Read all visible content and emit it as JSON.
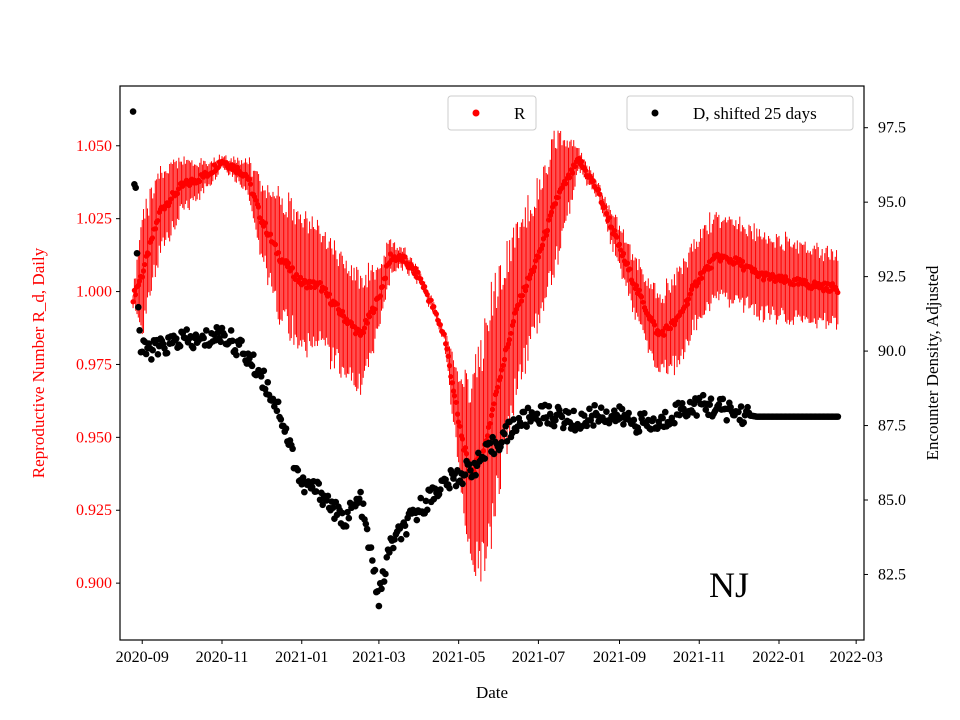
{
  "chart_data": {
    "type": "scatter",
    "xlabel": "Date",
    "y1label": "Reproductive Number R_d, Daily",
    "y2label": "Encounter Density, Adjusted",
    "annotation": "NJ",
    "xlim": [
      "2020-08-15",
      "2022-03-07"
    ],
    "y1lim": [
      0.8805,
      1.0705
    ],
    "y2lim": [
      80.3,
      98.9
    ],
    "xticks": [
      {
        "date": "2020-09-01",
        "label": "2020-09"
      },
      {
        "date": "2020-11-01",
        "label": "2020-11"
      },
      {
        "date": "2021-01-01",
        "label": "2021-01"
      },
      {
        "date": "2021-03-01",
        "label": "2021-03"
      },
      {
        "date": "2021-05-01",
        "label": "2021-05"
      },
      {
        "date": "2021-07-01",
        "label": "2021-07"
      },
      {
        "date": "2021-09-01",
        "label": "2021-09"
      },
      {
        "date": "2021-11-01",
        "label": "2021-11"
      },
      {
        "date": "2022-01-01",
        "label": "2022-01"
      },
      {
        "date": "2022-03-01",
        "label": "2022-03"
      }
    ],
    "y1ticks": [
      {
        "value": 0.9,
        "label": "0.900"
      },
      {
        "value": 0.925,
        "label": "0.925"
      },
      {
        "value": 0.95,
        "label": "0.950"
      },
      {
        "value": 0.975,
        "label": "0.975"
      },
      {
        "value": 1.0,
        "label": "1.000"
      },
      {
        "value": 1.025,
        "label": "1.025"
      },
      {
        "value": 1.05,
        "label": "1.050"
      }
    ],
    "y2ticks": [
      {
        "value": 82.5,
        "label": "82.5"
      },
      {
        "value": 85.0,
        "label": "85.0"
      },
      {
        "value": 87.5,
        "label": "87.5"
      },
      {
        "value": 90.0,
        "label": "90.0"
      },
      {
        "value": 92.5,
        "label": "92.5"
      },
      {
        "value": 95.0,
        "label": "95.0"
      },
      {
        "value": 97.5,
        "label": "97.5"
      }
    ],
    "legend": [
      {
        "name": "R",
        "color": "#ff0000",
        "placement": "top-center"
      },
      {
        "name": "D, shifted 25 days",
        "color": "#000000",
        "placement": "top-right"
      }
    ],
    "series": [
      {
        "name": "R",
        "axis": "left",
        "color": "#ff0000",
        "style": "markers with daily error bars",
        "center_knots": [
          [
            "2020-08-25",
            0.998
          ],
          [
            "2020-09-01",
            1.006
          ],
          [
            "2020-09-15",
            1.028
          ],
          [
            "2020-10-01",
            1.036
          ],
          [
            "2020-10-20",
            1.04
          ],
          [
            "2020-11-01",
            1.045
          ],
          [
            "2020-11-20",
            1.04
          ],
          [
            "2020-12-01",
            1.025
          ],
          [
            "2020-12-15",
            1.012
          ],
          [
            "2021-01-01",
            1.003
          ],
          [
            "2021-01-15",
            1.002
          ],
          [
            "2021-02-01",
            0.992
          ],
          [
            "2021-02-15",
            0.985
          ],
          [
            "2021-03-01",
            0.998
          ],
          [
            "2021-03-10",
            1.012
          ],
          [
            "2021-03-20",
            1.011
          ],
          [
            "2021-04-01",
            1.005
          ],
          [
            "2021-04-10",
            0.996
          ],
          [
            "2021-04-20",
            0.985
          ],
          [
            "2021-04-25",
            0.972
          ],
          [
            "2021-05-01",
            0.955
          ],
          [
            "2021-05-10",
            0.937
          ],
          [
            "2021-05-20",
            0.945
          ],
          [
            "2021-06-01",
            0.97
          ],
          [
            "2021-06-15",
            0.995
          ],
          [
            "2021-07-01",
            1.012
          ],
          [
            "2021-07-15",
            1.032
          ],
          [
            "2021-08-01",
            1.045
          ],
          [
            "2021-08-15",
            1.035
          ],
          [
            "2021-09-01",
            1.015
          ],
          [
            "2021-09-15",
            1.0
          ],
          [
            "2021-10-01",
            0.985
          ],
          [
            "2021-10-15",
            0.99
          ],
          [
            "2021-11-01",
            1.005
          ],
          [
            "2021-11-15",
            1.012
          ],
          [
            "2021-12-01",
            1.01
          ],
          [
            "2021-12-15",
            1.006
          ],
          [
            "2022-01-01",
            1.004
          ],
          [
            "2022-01-15",
            1.003
          ],
          [
            "2022-02-15",
            1.001
          ]
        ],
        "spread_knots": [
          [
            "2020-08-25",
            0.003
          ],
          [
            "2020-09-01",
            0.022
          ],
          [
            "2020-10-01",
            0.01
          ],
          [
            "2020-11-01",
            0.002
          ],
          [
            "2020-11-20",
            0.006
          ],
          [
            "2020-12-15",
            0.025
          ],
          [
            "2021-02-15",
            0.022
          ],
          [
            "2021-03-15",
            0.004
          ],
          [
            "2021-04-01",
            0.002
          ],
          [
            "2021-04-20",
            0.002
          ],
          [
            "2021-05-10",
            0.035
          ],
          [
            "2021-05-25",
            0.048
          ],
          [
            "2021-06-15",
            0.03
          ],
          [
            "2021-07-15",
            0.025
          ],
          [
            "2021-08-01",
            0.004
          ],
          [
            "2021-08-15",
            0.003
          ],
          [
            "2021-09-15",
            0.012
          ],
          [
            "2021-10-15",
            0.018
          ],
          [
            "2021-12-01",
            0.016
          ],
          [
            "2022-02-15",
            0.015
          ]
        ]
      },
      {
        "name": "D, shifted 25 days",
        "axis": "right",
        "color": "#000000",
        "style": "markers",
        "knots": [
          [
            "2020-08-25",
            98.2
          ],
          [
            "2020-08-26",
            95.8
          ],
          [
            "2020-08-27",
            95.3
          ],
          [
            "2020-08-28",
            93.5
          ],
          [
            "2020-08-29",
            91.5
          ],
          [
            "2020-08-31",
            90.0
          ],
          [
            "2020-09-15",
            90.1
          ],
          [
            "2020-10-01",
            90.4
          ],
          [
            "2020-10-15",
            90.3
          ],
          [
            "2020-11-01",
            90.6
          ],
          [
            "2020-11-15",
            90.1
          ],
          [
            "2020-12-01",
            89.2
          ],
          [
            "2020-12-15",
            88.0
          ],
          [
            "2021-01-01",
            85.5
          ],
          [
            "2021-01-15",
            85.3
          ],
          [
            "2021-02-01",
            84.3
          ],
          [
            "2021-02-15",
            85.0
          ],
          [
            "2021-03-01",
            81.7
          ],
          [
            "2021-03-10",
            83.5
          ],
          [
            "2021-03-20",
            84.0
          ],
          [
            "2021-04-01",
            84.7
          ],
          [
            "2021-04-15",
            85.4
          ],
          [
            "2021-05-01",
            85.8
          ],
          [
            "2021-05-15",
            86.2
          ],
          [
            "2021-06-01",
            87.0
          ],
          [
            "2021-06-15",
            87.6
          ],
          [
            "2021-07-01",
            87.9
          ],
          [
            "2021-07-15",
            87.8
          ],
          [
            "2021-08-01",
            87.6
          ],
          [
            "2021-08-15",
            87.9
          ],
          [
            "2021-09-01",
            87.8
          ],
          [
            "2021-09-15",
            87.6
          ],
          [
            "2021-10-01",
            87.5
          ],
          [
            "2021-10-15",
            88.0
          ],
          [
            "2021-11-01",
            88.2
          ],
          [
            "2021-11-15",
            88.1
          ],
          [
            "2021-12-01",
            87.9
          ],
          [
            "2021-12-15",
            87.8
          ],
          [
            "2022-02-15",
            87.8
          ]
        ]
      }
    ]
  }
}
